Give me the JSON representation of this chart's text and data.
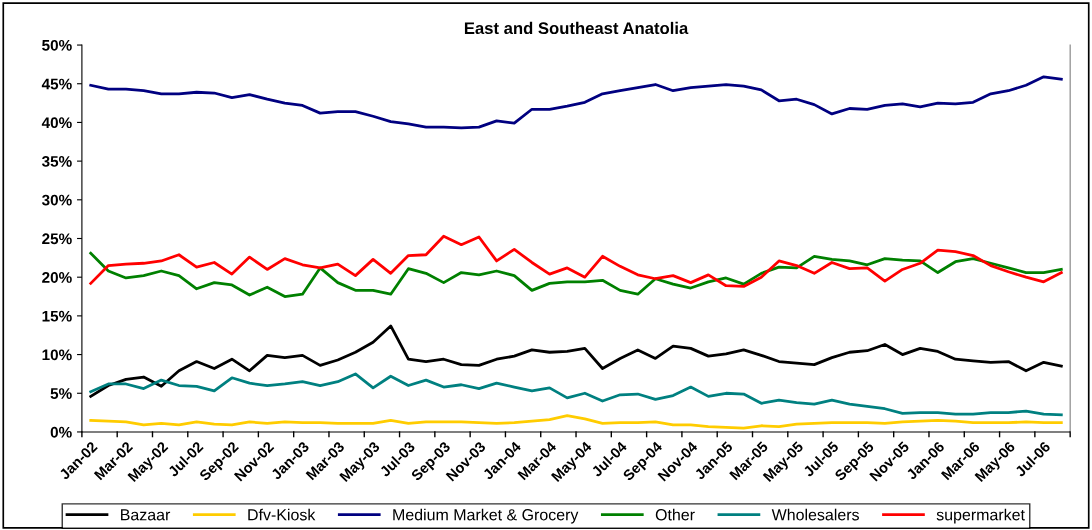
{
  "chart_data": {
    "type": "line",
    "title": "East and Southeast Anatolia",
    "categories": [
      "Jan-02",
      null,
      "Mar-02",
      null,
      "May-02",
      null,
      "Jul-02",
      null,
      "Sep-02",
      null,
      "Nov-02",
      null,
      "Jan-03",
      null,
      "Mar-03",
      null,
      "May-03",
      null,
      "Jul-03",
      null,
      "Sep-03",
      null,
      "Nov-03",
      null,
      "Jan-04",
      null,
      "Mar-04",
      null,
      "May-04",
      null,
      "Jul-04",
      null,
      "Sep-04",
      null,
      "Nov-04",
      null,
      "Jan-05",
      null,
      "Mar-05",
      null,
      "May-05",
      null,
      "Jul-05",
      null,
      "Sep-05",
      null,
      "Nov-05",
      null,
      "Jan-06",
      null,
      "Mar-06",
      null,
      "May-06",
      null,
      "Jul-06",
      null
    ],
    "series": [
      {
        "name": "Bazaar",
        "color": "#000000",
        "values": [
          4.6,
          6.0,
          6.8,
          7.1,
          5.9,
          7.9,
          9.1,
          8.2,
          9.4,
          7.9,
          9.9,
          9.6,
          9.9,
          8.6,
          9.3,
          10.3,
          11.6,
          13.7,
          9.4,
          9.1,
          9.4,
          8.7,
          8.6,
          9.4,
          9.8,
          10.6,
          10.3,
          10.4,
          10.8,
          8.2,
          9.5,
          10.6,
          9.5,
          11.1,
          10.8,
          9.8,
          10.1,
          10.6,
          9.9,
          9.1,
          8.9,
          8.7,
          9.6,
          10.3,
          10.5,
          11.3,
          10.0,
          10.8,
          10.4,
          9.4,
          9.2,
          9.0,
          9.1,
          7.9,
          9.0,
          8.5
        ]
      },
      {
        "name": "Dfv-Kiosk",
        "color": "#ffcc00",
        "values": [
          1.5,
          1.4,
          1.3,
          0.9,
          1.1,
          0.9,
          1.3,
          1.0,
          0.9,
          1.3,
          1.1,
          1.3,
          1.2,
          1.2,
          1.1,
          1.1,
          1.1,
          1.5,
          1.1,
          1.3,
          1.3,
          1.3,
          1.2,
          1.1,
          1.2,
          1.4,
          1.6,
          2.1,
          1.7,
          1.1,
          1.2,
          1.2,
          1.3,
          0.9,
          0.9,
          0.7,
          0.6,
          0.5,
          0.8,
          0.7,
          1.0,
          1.1,
          1.2,
          1.2,
          1.2,
          1.1,
          1.3,
          1.4,
          1.5,
          1.4,
          1.2,
          1.2,
          1.2,
          1.3,
          1.2,
          1.2
        ]
      },
      {
        "name": "Medium Market & Grocery",
        "color": "#000080",
        "values": [
          44.8,
          44.3,
          44.3,
          44.1,
          43.7,
          43.7,
          43.9,
          43.8,
          43.2,
          43.6,
          43.0,
          42.5,
          42.2,
          41.2,
          41.4,
          41.4,
          40.8,
          40.1,
          39.8,
          39.4,
          39.4,
          39.3,
          39.4,
          40.2,
          39.9,
          41.7,
          41.7,
          42.1,
          42.6,
          43.7,
          44.1,
          44.5,
          44.9,
          44.1,
          44.5,
          44.7,
          44.9,
          44.7,
          44.2,
          42.8,
          43.0,
          42.3,
          41.1,
          41.8,
          41.7,
          42.2,
          42.4,
          42.0,
          42.5,
          42.4,
          42.6,
          43.7,
          44.1,
          44.8,
          45.9,
          45.6
        ]
      },
      {
        "name": "Other",
        "color": "#008000",
        "values": [
          23.1,
          20.8,
          19.9,
          20.2,
          20.8,
          20.2,
          18.5,
          19.3,
          19.0,
          17.7,
          18.7,
          17.5,
          17.8,
          21.2,
          19.3,
          18.3,
          18.3,
          17.8,
          21.1,
          20.5,
          19.3,
          20.6,
          20.3,
          20.8,
          20.2,
          18.3,
          19.2,
          19.4,
          19.4,
          19.6,
          18.3,
          17.8,
          19.8,
          19.1,
          18.6,
          19.4,
          19.9,
          19.1,
          20.5,
          21.3,
          21.2,
          22.7,
          22.3,
          22.1,
          21.6,
          22.4,
          22.2,
          22.1,
          20.6,
          22.0,
          22.4,
          21.8,
          21.2,
          20.6,
          20.6,
          21.0
        ]
      },
      {
        "name": "Wholesalers",
        "color": "#008080",
        "values": [
          5.2,
          6.2,
          6.2,
          5.6,
          6.7,
          6.0,
          5.9,
          5.3,
          7.0,
          6.3,
          6.0,
          6.2,
          6.5,
          6.0,
          6.5,
          7.5,
          5.7,
          7.2,
          6.0,
          6.7,
          5.8,
          6.1,
          5.6,
          6.3,
          5.8,
          5.3,
          5.7,
          4.4,
          5.0,
          4.0,
          4.8,
          4.9,
          4.2,
          4.7,
          5.8,
          4.6,
          5.0,
          4.9,
          3.7,
          4.1,
          3.8,
          3.6,
          4.1,
          3.6,
          3.3,
          3.0,
          2.4,
          2.5,
          2.5,
          2.3,
          2.3,
          2.5,
          2.5,
          2.7,
          2.3,
          2.2
        ]
      },
      {
        "name": "supermarket",
        "color": "#ff0000",
        "values": [
          19.2,
          21.5,
          21.7,
          21.8,
          22.1,
          22.9,
          21.3,
          21.9,
          20.4,
          22.6,
          21.0,
          22.4,
          21.6,
          21.2,
          21.7,
          20.2,
          22.3,
          20.5,
          22.8,
          22.9,
          25.3,
          24.2,
          25.2,
          22.1,
          23.6,
          21.9,
          20.4,
          21.2,
          20.0,
          22.7,
          21.4,
          20.3,
          19.8,
          20.2,
          19.3,
          20.3,
          18.9,
          18.8,
          20.0,
          22.1,
          21.5,
          20.5,
          21.9,
          21.1,
          21.2,
          19.5,
          21.0,
          21.8,
          23.5,
          23.3,
          22.8,
          21.5,
          20.7,
          20.0,
          19.4,
          20.6
        ]
      }
    ],
    "ylim": [
      0,
      50
    ],
    "yticks": [
      {
        "value": 0,
        "label": "0%"
      },
      {
        "value": 5,
        "label": "5%"
      },
      {
        "value": 10,
        "label": "10%"
      },
      {
        "value": 15,
        "label": "15%"
      },
      {
        "value": 20,
        "label": "20%"
      },
      {
        "value": 25,
        "label": "25%"
      },
      {
        "value": 30,
        "label": "30%"
      },
      {
        "value": 35,
        "label": "35%"
      },
      {
        "value": 40,
        "label": "40%"
      },
      {
        "value": 45,
        "label": "45%"
      },
      {
        "value": 50,
        "label": "50%"
      }
    ],
    "grid": false,
    "legend": "bottom",
    "marker": "none",
    "line_style": "solid"
  }
}
